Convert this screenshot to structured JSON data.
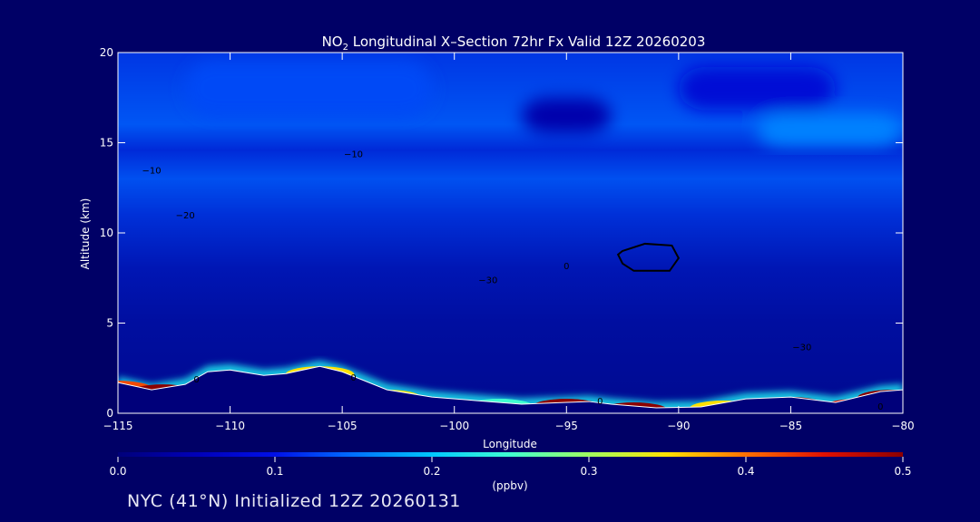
{
  "chart_data": {
    "type": "heatmap",
    "title": {
      "species_main": "NO",
      "species_sub": "2",
      "rest": " Longitudinal X–Section 72hr  Fx Valid 12Z 20260203"
    },
    "xlabel": "Longitude",
    "ylabel": "Altitude (km)",
    "xlim": [
      -115,
      -80
    ],
    "ylim": [
      0,
      20
    ],
    "x_ticks": [
      -115,
      -110,
      -105,
      -100,
      -95,
      -90,
      -85,
      -80
    ],
    "x_tick_labels": [
      "−115",
      "−110",
      "−105",
      "−100",
      "−95",
      "−90",
      "−85",
      "−80"
    ],
    "y_ticks": [
      0,
      5,
      10,
      15,
      20
    ],
    "y_tick_labels": [
      "0",
      "5",
      "10",
      "15",
      "20"
    ],
    "colorbar": {
      "label": "(ppbv)",
      "range": [
        0.0,
        0.5
      ],
      "ticks": [
        0.0,
        0.1,
        0.2,
        0.3,
        0.4,
        0.5
      ],
      "tick_labels": [
        "0.0",
        "0.1",
        "0.2",
        "0.3",
        "0.4",
        "0.5"
      ],
      "colormap": [
        "#00007a",
        "#0000b8",
        "#0010e8",
        "#0070ff",
        "#00c8ff",
        "#40ffd0",
        "#a0ff60",
        "#ffe000",
        "#ff7000",
        "#e01000",
        "#8b0000"
      ]
    },
    "terrain": [
      {
        "x": -115,
        "y": 1.7
      },
      {
        "x": -113.5,
        "y": 1.3
      },
      {
        "x": -112,
        "y": 1.6
      },
      {
        "x": -111,
        "y": 2.3
      },
      {
        "x": -110,
        "y": 2.4
      },
      {
        "x": -108.5,
        "y": 2.1
      },
      {
        "x": -107.5,
        "y": 2.2
      },
      {
        "x": -106,
        "y": 2.6
      },
      {
        "x": -105,
        "y": 2.3
      },
      {
        "x": -103,
        "y": 1.3
      },
      {
        "x": -101,
        "y": 0.9
      },
      {
        "x": -99,
        "y": 0.7
      },
      {
        "x": -97,
        "y": 0.5
      },
      {
        "x": -95,
        "y": 0.6
      },
      {
        "x": -94,
        "y": 0.65
      },
      {
        "x": -93,
        "y": 0.5
      },
      {
        "x": -91,
        "y": 0.3
      },
      {
        "x": -89,
        "y": 0.35
      },
      {
        "x": -87,
        "y": 0.8
      },
      {
        "x": -85,
        "y": 0.9
      },
      {
        "x": -83,
        "y": 0.6
      },
      {
        "x": -81,
        "y": 1.2
      },
      {
        "x": -80,
        "y": 1.3
      }
    ],
    "surface_layer": [
      {
        "x": -115,
        "y": 1.5,
        "value": 0.42
      },
      {
        "x": -113,
        "y": 1.3,
        "value": 0.5
      },
      {
        "x": -110,
        "y": 2.0,
        "value": 0.38
      },
      {
        "x": -106,
        "y": 2.3,
        "value": 0.35
      },
      {
        "x": -103,
        "y": 1.0,
        "value": 0.35
      },
      {
        "x": -98,
        "y": 0.5,
        "value": 0.25
      },
      {
        "x": -95,
        "y": 0.5,
        "value": 0.5
      },
      {
        "x": -92,
        "y": 0.3,
        "value": 0.5
      },
      {
        "x": -88,
        "y": 0.4,
        "value": 0.35
      },
      {
        "x": -85,
        "y": 0.6,
        "value": 0.5
      },
      {
        "x": -82,
        "y": 0.5,
        "value": 0.45
      },
      {
        "x": -80.5,
        "y": 1.0,
        "value": 0.5
      }
    ],
    "bands": [
      {
        "y": [
          16.5,
          19.5
        ],
        "x": [
          -112,
          -101
        ],
        "value": 0.13
      },
      {
        "y": [
          14.8,
          16.6
        ],
        "x": [
          -86.5,
          -80
        ],
        "value": 0.16
      },
      {
        "y": [
          16.8,
          19.2
        ],
        "x": [
          -90,
          -83
        ],
        "value": 0.08
      },
      {
        "y": [
          15.5,
          17.5
        ],
        "x": [
          -97,
          -93
        ],
        "value": 0.04
      }
    ],
    "contours": [
      {
        "label": "0",
        "style": "solid",
        "x": -93.5,
        "y": 0.5
      },
      {
        "label": "0",
        "style": "solid",
        "x": -81,
        "y": 0.2
      },
      {
        "label": "0",
        "style": "dotted",
        "x": -104.5,
        "y": 1.8
      },
      {
        "label": "0",
        "style": "dotted",
        "x": -111.5,
        "y": 1.7
      },
      {
        "label": "−10",
        "style": "dotted",
        "x": -113.5,
        "y": 13.3
      },
      {
        "label": "−10",
        "style": "dotted",
        "x": -104.5,
        "y": 14.2
      },
      {
        "label": "−20",
        "style": "dotted",
        "x": -112,
        "y": 10.8
      },
      {
        "label": "−30",
        "style": "dotted",
        "x": -98.5,
        "y": 7.2
      },
      {
        "label": "−30",
        "style": "dotted",
        "x": -84.5,
        "y": 3.5
      },
      {
        "label": "0",
        "style": "dotted",
        "x": -95,
        "y": 8
      }
    ],
    "closed_contour": [
      {
        "x": -92.5,
        "y": 9.0
      },
      {
        "x": -91.5,
        "y": 9.4
      },
      {
        "x": -90.3,
        "y": 9.3
      },
      {
        "x": -90,
        "y": 8.6
      },
      {
        "x": -90.4,
        "y": 7.9
      },
      {
        "x": -92,
        "y": 7.9
      },
      {
        "x": -92.5,
        "y": 8.3
      },
      {
        "x": -92.7,
        "y": 8.8
      }
    ]
  },
  "footer": {
    "caption": "NYC (41°N) Initialized 12Z 20260131"
  }
}
